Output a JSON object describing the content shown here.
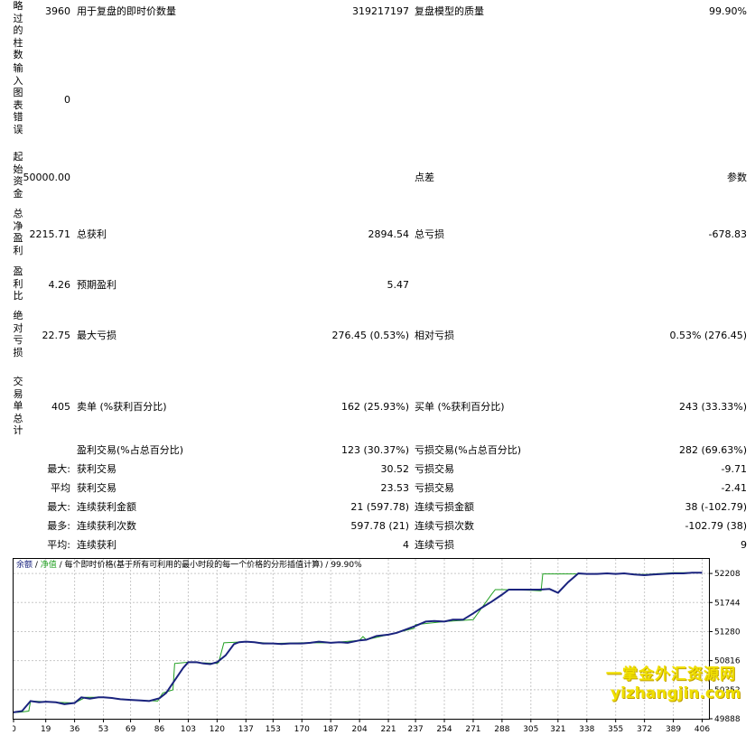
{
  "rows": {
    "r1": {
      "label_v": "略过的柱数",
      "v1": "3960",
      "l2": "用于复盘的即时价数量",
      "v2": "319217197",
      "l3": "复盘模型的质量",
      "v3": "99.90%"
    },
    "r2": {
      "label_v": "输入图表错误",
      "v1": "0"
    },
    "r3": {
      "label_v": "起始资金",
      "v1": "50000.00",
      "l3": "点差",
      "v3": "参数"
    },
    "r4": {
      "label_v": "总净盈利",
      "v1": "2215.71",
      "l2": "总获利",
      "v2": "2894.54",
      "l3": "总亏损",
      "v3": "-678.83"
    },
    "r5": {
      "label_v": "盈利比",
      "v1": "4.26",
      "l2": "预期盈利",
      "v2": "5.47"
    },
    "r6": {
      "label_v": "绝对亏损",
      "v1": "22.75",
      "l2": "最大亏损",
      "v2": "276.45 (0.53%)",
      "l3": "相对亏损",
      "v3": "0.53% (276.45)"
    },
    "r7": {
      "label_v": "交易单总计",
      "v1": "405",
      "l2": "卖单 (%获利百分比)",
      "v2": "162 (25.93%)",
      "l3": "买单 (%获利百分比)",
      "v3": "243 (33.33%)"
    },
    "r8": {
      "l2": "盈利交易(%占总百分比)",
      "v2": "123 (30.37%)",
      "l3": "亏损交易(%占总百分比)",
      "v3": "282 (69.63%)"
    },
    "r9": {
      "p": "最大:",
      "l2": "获利交易",
      "v2": "30.52",
      "l3": "亏损交易",
      "v3": "-9.71"
    },
    "r10": {
      "p": "平均",
      "l2": "获利交易",
      "v2": "23.53",
      "l3": "亏损交易",
      "v3": "-2.41"
    },
    "r11": {
      "p": "最大:",
      "l2": "连续获利金额",
      "v2": "21 (597.78)",
      "l3": "连续亏损金额",
      "v3": "38 (-102.79)"
    },
    "r12": {
      "p": "最多:",
      "l2": "连续获利次数",
      "v2": "597.78 (21)",
      "l3": "连续亏损次数",
      "v3": "-102.79 (38)"
    },
    "r13": {
      "p": "平均:",
      "l2": "连续获利",
      "v2": "4",
      "l3": "连续亏损",
      "v3": "9"
    }
  },
  "legend": {
    "balance": "余额",
    "sep1": " / ",
    "equity": "净值",
    "rest": " / 每个即时价格(基于所有可利用的最小时段的每一个价格的分形插值计算) / 99.90%"
  },
  "watermark": {
    "line1": "一掌金外汇资源网",
    "line2": "yizhangjin.com"
  },
  "colors": {
    "balance": "#1a237e",
    "equity": "#22a022",
    "grid": "#c8c8c8"
  },
  "chart_data": {
    "type": "line",
    "x_ticks": [
      0,
      19,
      36,
      53,
      69,
      86,
      103,
      120,
      137,
      153,
      170,
      187,
      204,
      221,
      237,
      254,
      271,
      288,
      305,
      321,
      338,
      355,
      372,
      389,
      406
    ],
    "y_ticks": [
      49888,
      50352,
      50816,
      51280,
      51744,
      52208
    ],
    "ylim": [
      49888,
      52440
    ],
    "xlim": [
      0,
      410
    ],
    "series": [
      {
        "name": "余额",
        "x": [
          0,
          5,
          10,
          15,
          19,
          25,
          30,
          36,
          40,
          45,
          50,
          53,
          58,
          63,
          69,
          75,
          80,
          86,
          90,
          95,
          100,
          103,
          108,
          112,
          116,
          120,
          125,
          130,
          133,
          137,
          142,
          147,
          153,
          158,
          163,
          170,
          175,
          180,
          187,
          192,
          197,
          204,
          208,
          214,
          221,
          226,
          232,
          237,
          243,
          248,
          254,
          259,
          265,
          271,
          276,
          282,
          288,
          292,
          297,
          302,
          305,
          310,
          316,
          321,
          327,
          333,
          338,
          344,
          350,
          355,
          360,
          366,
          372,
          377,
          383,
          389,
          395,
          400,
          406
        ],
        "y": [
          49990,
          50010,
          50170,
          50150,
          50160,
          50150,
          50120,
          50140,
          50230,
          50210,
          50230,
          50230,
          50220,
          50200,
          50190,
          50180,
          50170,
          50215,
          50300,
          50500,
          50700,
          50790,
          50790,
          50770,
          50760,
          50790,
          50900,
          51080,
          51110,
          51120,
          51110,
          51090,
          51090,
          51080,
          51090,
          51090,
          51100,
          51120,
          51100,
          51110,
          51100,
          51140,
          51150,
          51210,
          51230,
          51260,
          51320,
          51370,
          51440,
          51450,
          51440,
          51470,
          51470,
          51570,
          51660,
          51760,
          51870,
          51950,
          51950,
          51950,
          51950,
          51950,
          51960,
          51900,
          52070,
          52210,
          52200,
          52200,
          52210,
          52200,
          52210,
          52190,
          52180,
          52190,
          52200,
          52210,
          52210,
          52220,
          52220
        ]
      },
      {
        "name": "净值",
        "x": [
          0,
          3,
          9,
          10,
          19,
          25,
          36,
          41,
          42,
          53,
          69,
          85,
          86,
          88,
          94,
          95,
          103,
          120,
          121,
          124,
          137,
          153,
          170,
          187,
          204,
          206,
          208,
          221,
          236,
          237,
          254,
          271,
          282,
          284,
          288,
          305,
          311,
          312,
          321,
          338,
          355,
          372,
          389,
          406
        ],
        "y": [
          49990,
          49990,
          50010,
          50170,
          50160,
          50150,
          50140,
          50210,
          50230,
          50230,
          50190,
          50170,
          50215,
          50300,
          50350,
          50770,
          50790,
          50770,
          50790,
          51100,
          51120,
          51090,
          51100,
          51100,
          51140,
          51200,
          51150,
          51230,
          51330,
          51390,
          51440,
          51470,
          51880,
          51950,
          51950,
          51940,
          51930,
          52200,
          52200,
          52200,
          52210,
          52190,
          52220,
          52220
        ]
      }
    ]
  }
}
